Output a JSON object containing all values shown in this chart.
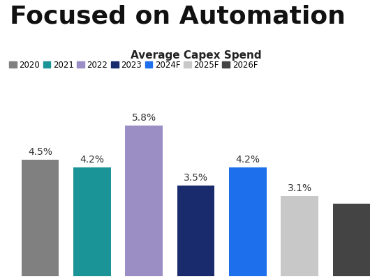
{
  "title": "Focused on Automation",
  "subtitle": "Average Capex Spend",
  "categories": [
    "2020",
    "2021",
    "2022",
    "2023",
    "2024F",
    "2025F",
    "2026F"
  ],
  "values": [
    4.5,
    4.2,
    5.8,
    3.5,
    4.2,
    3.1,
    2.8
  ],
  "bar_colors": [
    "#808080",
    "#1A9496",
    "#9B8EC4",
    "#1A2B6D",
    "#1E6FEB",
    "#C8C8C8",
    "#444444"
  ],
  "label_texts": [
    "4.5%",
    "4.2%",
    "5.8%",
    "3.5%",
    "4.2%",
    "3.1%",
    ""
  ],
  "background_color": "#ffffff",
  "title_fontsize": 26,
  "subtitle_fontsize": 11,
  "legend_fontsize": 8.5,
  "label_fontsize": 10,
  "ylim": [
    0,
    7.2
  ]
}
